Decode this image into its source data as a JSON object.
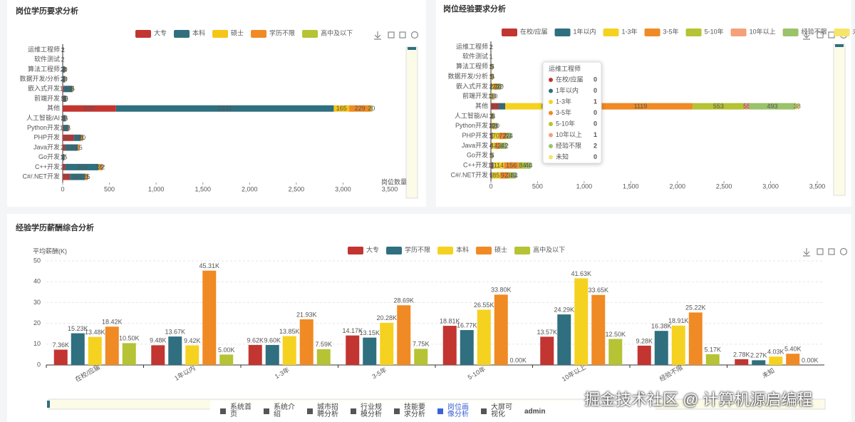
{
  "chart_data": [
    {
      "type": "bar",
      "orientation": "horizontal",
      "stacked": true,
      "title": "岗位学历要求分析",
      "x_label": "岗位数量",
      "categories": [
        "运维工程师",
        "软件测试",
        "算法工程师",
        "数据开发/分析",
        "嵌入式开发",
        "前端开发",
        "其他",
        "人工智能/AI",
        "Python开发",
        "PHP开发",
        "Java开发",
        "Go开发",
        "C++开发",
        "C#/.NET开发"
      ],
      "series": [
        {
          "name": "大专",
          "color": "#c23531",
          "values": [
            1,
            0,
            2,
            3,
            10,
            5,
            570,
            5,
            10,
            119,
            28,
            2,
            29,
            79
          ]
        },
        {
          "name": "本科",
          "color": "#2f6f7f",
          "values": [
            2,
            2,
            20,
            20,
            93,
            30,
            2331,
            25,
            50,
            76,
            135,
            15,
            354,
            161
          ]
        },
        {
          "name": "硕士",
          "color": "#f5c518",
          "values": [
            0,
            0,
            3,
            2,
            3,
            1,
            165,
            2,
            2,
            2,
            3,
            0,
            20,
            3
          ]
        },
        {
          "name": "学历不限",
          "color": "#f08a24",
          "values": [
            1,
            0,
            1,
            3,
            5,
            5,
            229,
            3,
            5,
            20,
            15,
            2,
            22,
            25
          ]
        },
        {
          "name": "高中及以下",
          "color": "#b5c334",
          "values": [
            0,
            0,
            0,
            0,
            0,
            0,
            20,
            0,
            0,
            1,
            0,
            0,
            2,
            1
          ]
        }
      ],
      "xlim": [
        0,
        3500
      ],
      "xticks": [
        0,
        500,
        {
          "value": 1000,
          "label": "1,000"
        },
        {
          "value": 1500,
          "label": "1,500"
        },
        {
          "value": 2000,
          "label": "2,000"
        },
        {
          "value": 2500,
          "label": "2,500"
        },
        {
          "value": 3000,
          "label": "3,000"
        },
        {
          "value": 3500,
          "label": "3,500"
        }
      ],
      "grid": false
    },
    {
      "type": "bar",
      "orientation": "horizontal",
      "stacked": true,
      "title": "岗位经验要求分析",
      "categories": [
        "运维工程师",
        "软件测试",
        "算法工程师",
        "数据开发/分析",
        "嵌入式开发",
        "前端开发",
        "其他",
        "人工智能/AI",
        "Python开发",
        "PHP开发",
        "Java开发",
        "Go开发",
        "C++开发",
        "C#/.NET开发"
      ],
      "series": [
        {
          "name": "在校/应届",
          "color": "#c23531",
          "values": [
            0,
            0,
            0,
            1,
            2,
            1,
            84,
            1,
            2,
            9,
            4,
            0,
            13,
            5
          ]
        },
        {
          "name": "1年以内",
          "color": "#2f6f7f",
          "values": [
            0,
            0,
            2,
            1,
            8,
            2,
            70,
            2,
            4,
            10,
            6,
            1,
            14,
            8
          ]
        },
        {
          "name": "1-3年",
          "color": "#f5d220",
          "values": [
            1,
            1,
            5,
            5,
            28,
            10,
            891,
            7,
            12,
            70,
            43,
            5,
            114,
            85
          ]
        },
        {
          "name": "3-5年",
          "color": "#f08a24",
          "values": [
            0,
            1,
            5,
            8,
            28,
            10,
            1119,
            8,
            15,
            72,
            42,
            5,
            156,
            92
          ]
        },
        {
          "name": "5-10年",
          "color": "#b5c334",
          "values": [
            0,
            0,
            3,
            3,
            20,
            5,
            553,
            5,
            10,
            24,
            30,
            3,
            84,
            38
          ]
        },
        {
          "name": "10年以上",
          "color": "#f4a07a",
          "values": [
            1,
            0,
            0,
            0,
            2,
            0,
            55,
            1,
            1,
            2,
            2,
            0,
            4,
            4
          ]
        },
        {
          "name": "经验不限",
          "color": "#9bc36a",
          "values": [
            2,
            0,
            5,
            5,
            20,
            10,
            493,
            8,
            20,
            24,
            42,
            5,
            40,
            34
          ]
        },
        {
          "name": "未知",
          "color": "#f7e46a",
          "values": [
            0,
            0,
            0,
            0,
            2,
            0,
            38,
            0,
            1,
            1,
            2,
            0,
            4,
            2
          ]
        }
      ],
      "xlim": [
        0,
        3500
      ],
      "xticks": [
        0,
        500,
        {
          "value": 1000,
          "label": "1,000"
        },
        {
          "value": 1500,
          "label": "1,500"
        },
        {
          "value": 2000,
          "label": "2,000"
        },
        {
          "value": 2500,
          "label": "2,500"
        },
        {
          "value": 3000,
          "label": "3,000"
        },
        {
          "value": 3500,
          "label": "3,500"
        }
      ],
      "grid": false
    },
    {
      "type": "bar",
      "orientation": "vertical",
      "stacked": false,
      "title": "经验学历薪酬综合分析",
      "y_label": "平均薪酬(K)",
      "categories": [
        "在校/应届",
        "1年以内",
        "1-3年",
        "3-5年",
        "5-10年",
        "10年以上",
        "经验不限",
        "未知"
      ],
      "series": [
        {
          "name": "大专",
          "color": "#c23531",
          "values": [
            7.36,
            9.48,
            9.62,
            14.17,
            18.81,
            13.57,
            9.28,
            2.78
          ],
          "value_labels": [
            "7.36K",
            "9.48K",
            "9.62K",
            "14.17K",
            "18.81K",
            "13.57K",
            "9.28K",
            "2.78K"
          ]
        },
        {
          "name": "学历不限",
          "color": "#2f6f7f",
          "values": [
            15.23,
            13.67,
            9.6,
            13.15,
            16.77,
            24.29,
            16.38,
            2.27
          ],
          "value_labels": [
            "15.23K",
            "13.67K",
            "9.60K",
            "13.15K",
            "16.77K",
            "24.29K",
            "16.38K",
            "2.27K"
          ]
        },
        {
          "name": "本科",
          "color": "#f5d220",
          "values": [
            13.48,
            9.42,
            13.85,
            20.28,
            26.55,
            41.63,
            18.91,
            4.03
          ],
          "value_labels": [
            "13.48K",
            "9.42K",
            "13.85K",
            "20.28K",
            "26.55K",
            "41.63K",
            "18.91K",
            "4.03K"
          ]
        },
        {
          "name": "硕士",
          "color": "#f08a24",
          "values": [
            18.42,
            45.31,
            21.93,
            28.69,
            33.8,
            33.65,
            25.22,
            5.4
          ],
          "value_labels": [
            "18.42K",
            "45.31K",
            "21.93K",
            "28.69K",
            "33.80K",
            "33.65K",
            "25.22K",
            "5.40K"
          ]
        },
        {
          "name": "高中及以下",
          "color": "#b5c334",
          "values": [
            10.5,
            5.0,
            7.59,
            7.75,
            0.0,
            12.5,
            5.17,
            0.0
          ],
          "value_labels": [
            "10.50K",
            "5.00K",
            "7.59K",
            "7.75K",
            "0.00K",
            "12.50K",
            "5.17K",
            "0.00K"
          ]
        }
      ],
      "ylim": [
        0,
        50
      ],
      "yticks": [
        0,
        10,
        20,
        30,
        40,
        50
      ],
      "grid": true
    }
  ],
  "nav": {
    "items": [
      "系统首页",
      "系统介绍",
      "城市招聘分析",
      "行业规模分析",
      "技能要求分析",
      "岗位画像分析",
      "大屏可视化"
    ],
    "active": 5,
    "user": "admin"
  },
  "watermark": "掘金技术社区 @ 计算机源启编程"
}
